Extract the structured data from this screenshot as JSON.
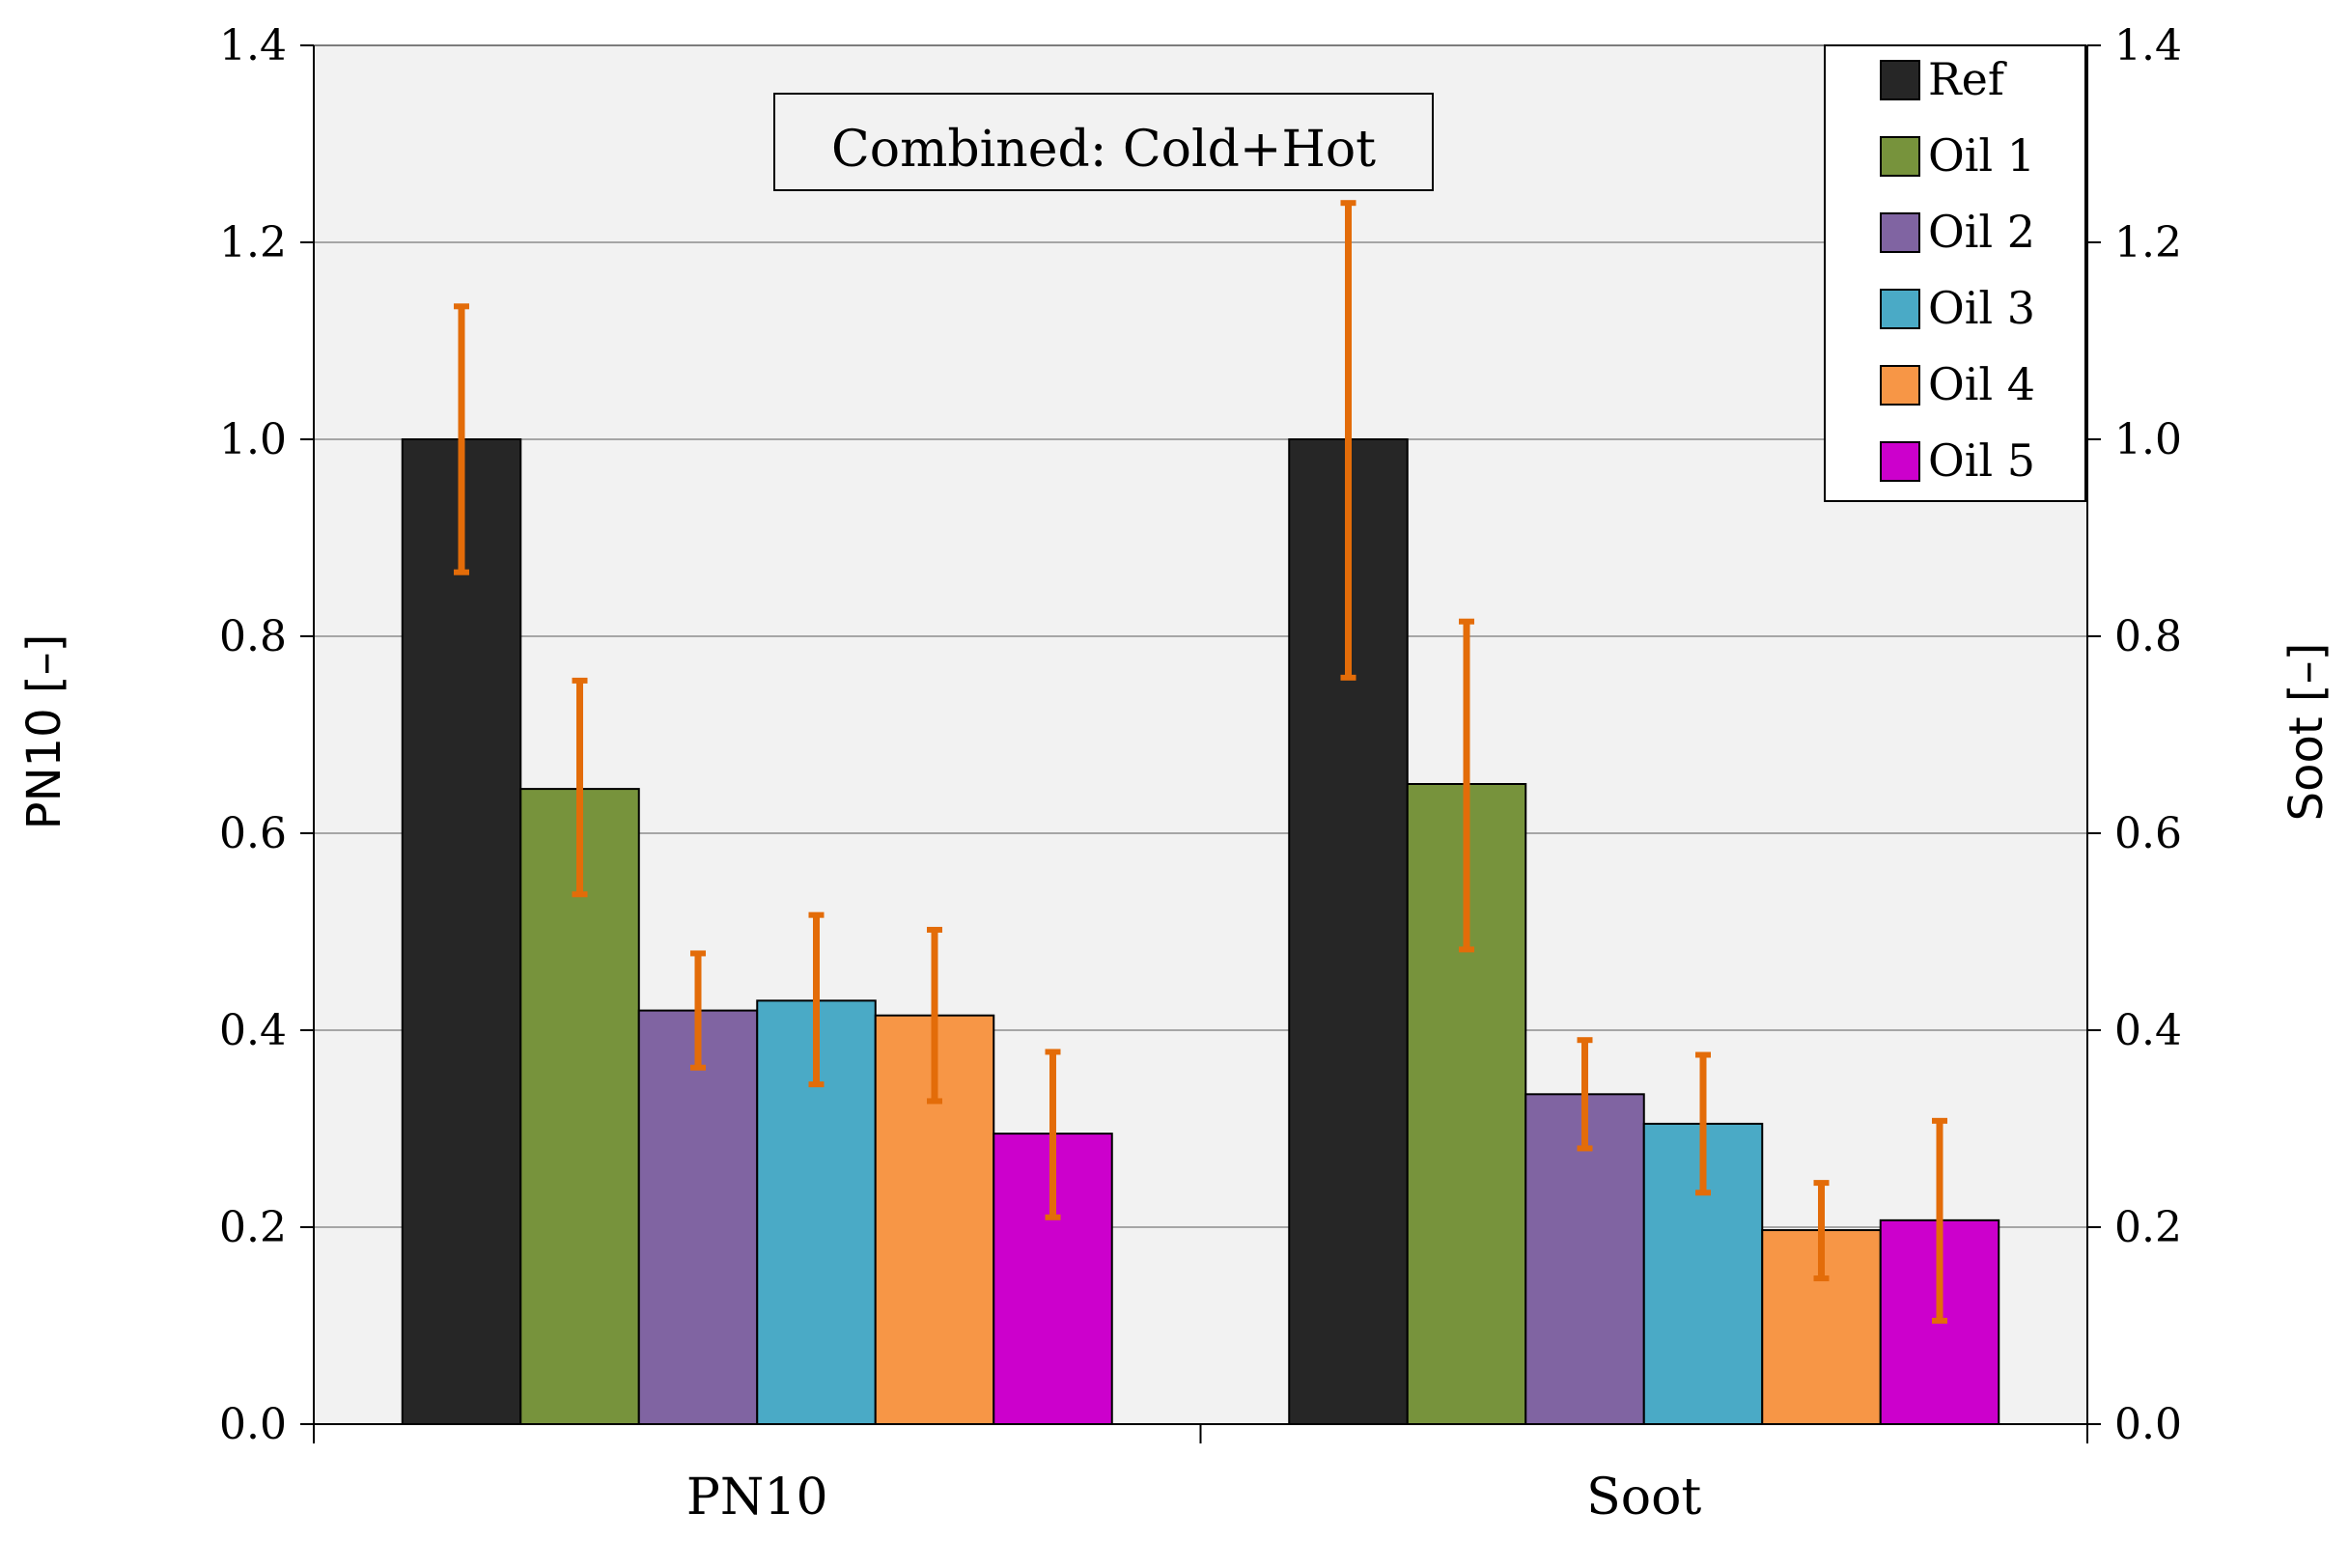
{
  "chart_data": {
    "type": "bar",
    "title": "Combined: Cold+Hot",
    "categories": [
      "PN10",
      "Soot"
    ],
    "ylabel_left": "PN10 [–]",
    "ylabel_right": "Soot [–]",
    "ylim": [
      0,
      1.4
    ],
    "yticks": [
      "0.0",
      "0.2",
      "0.4",
      "0.6",
      "0.8",
      "1.0",
      "1.2",
      "1.4"
    ],
    "grid": true,
    "legend_position": "top-right",
    "series": [
      {
        "name": "Ref",
        "color": "#262626",
        "values": [
          1.0,
          1.0
        ],
        "err_low": [
          0.865,
          0.758
        ],
        "err_high": [
          1.135,
          1.24
        ]
      },
      {
        "name": "Oil 1",
        "color": "#77933c",
        "values": [
          0.645,
          0.65
        ],
        "err_low": [
          0.538,
          0.482
        ],
        "err_high": [
          0.755,
          0.815
        ]
      },
      {
        "name": "Oil 2",
        "color": "#8064a2",
        "values": [
          0.42,
          0.335
        ],
        "err_low": [
          0.362,
          0.28
        ],
        "err_high": [
          0.478,
          0.39
        ]
      },
      {
        "name": "Oil 3",
        "color": "#4aaac6",
        "values": [
          0.43,
          0.305
        ],
        "err_low": [
          0.345,
          0.235
        ],
        "err_high": [
          0.517,
          0.375
        ]
      },
      {
        "name": "Oil 4",
        "color": "#f79646",
        "values": [
          0.415,
          0.197
        ],
        "err_low": [
          0.328,
          0.148
        ],
        "err_high": [
          0.502,
          0.245
        ]
      },
      {
        "name": "Oil 5",
        "color": "#cc00cc",
        "values": [
          0.295,
          0.207
        ],
        "err_low": [
          0.21,
          0.105
        ],
        "err_high": [
          0.378,
          0.308
        ]
      }
    ],
    "error_bar_color": "#e36c09"
  }
}
